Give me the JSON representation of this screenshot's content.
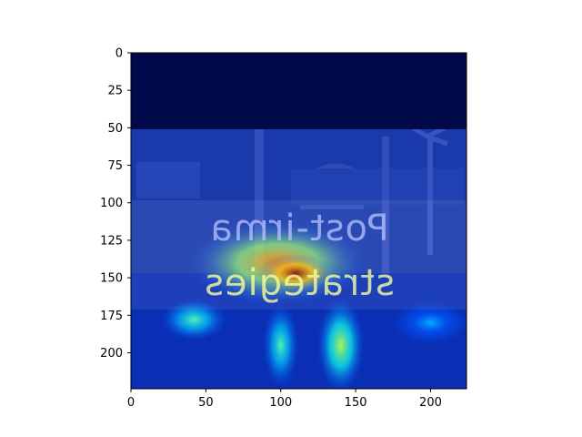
{
  "chart_data": {
    "type": "heatmap",
    "title": "",
    "xlabel": "",
    "ylabel": "",
    "image_width": 224,
    "image_height": 224,
    "xlim": [
      0,
      224
    ],
    "ylim": [
      224,
      0
    ],
    "x_ticks": [
      0,
      50,
      100,
      150,
      200
    ],
    "y_ticks": [
      0,
      25,
      50,
      75,
      100,
      125,
      150,
      175,
      200
    ],
    "colormap": "jet",
    "grid": false,
    "legend": "none",
    "background_content": "mirrored street photo with text overlay",
    "mirrored_text_lines": [
      "Post-irma",
      "strategies"
    ],
    "hotspots": [
      {
        "x": 110,
        "y": 147,
        "intensity": 1.0,
        "rx": 26,
        "ry": 13
      },
      {
        "x": 98,
        "y": 140,
        "intensity": 0.75,
        "rx": 60,
        "ry": 28
      },
      {
        "x": 140,
        "y": 195,
        "intensity": 0.55,
        "rx": 16,
        "ry": 32
      },
      {
        "x": 100,
        "y": 195,
        "intensity": 0.45,
        "rx": 12,
        "ry": 28
      },
      {
        "x": 42,
        "y": 178,
        "intensity": 0.45,
        "rx": 22,
        "ry": 14
      },
      {
        "x": 200,
        "y": 180,
        "intensity": 0.3,
        "rx": 25,
        "ry": 14
      }
    ]
  }
}
